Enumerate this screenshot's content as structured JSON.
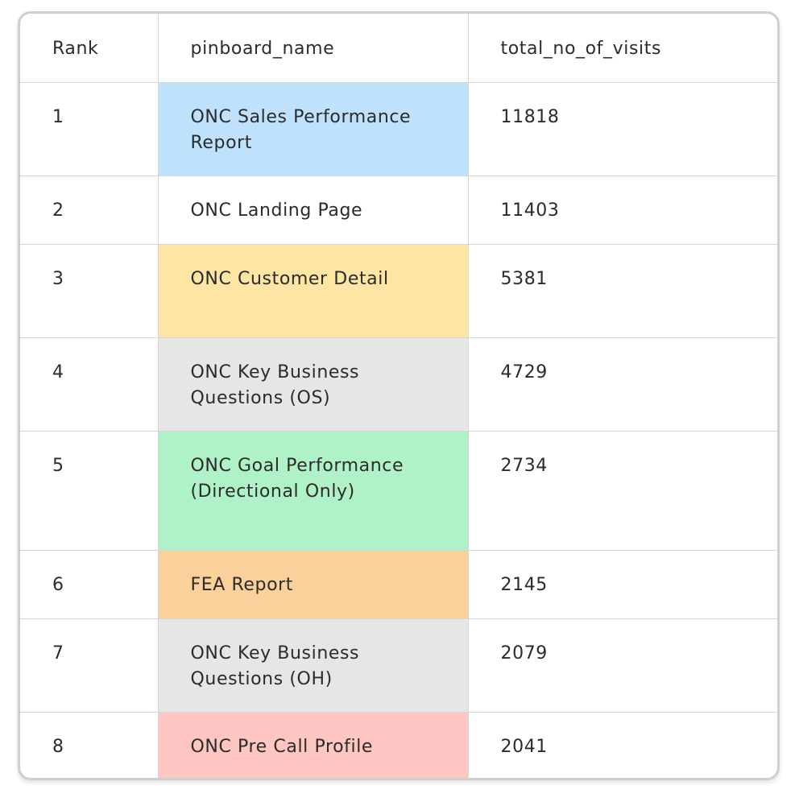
{
  "table": {
    "columns": [
      "Rank",
      "pinboard_name",
      "total_no_of_visits"
    ],
    "rows": [
      {
        "rank": "1",
        "name": "ONC Sales Performance Report",
        "visits": "11818",
        "color": "#bfe2fc"
      },
      {
        "rank": "2",
        "name": "ONC Landing Page",
        "visits": "11403",
        "color": "#ffffff"
      },
      {
        "rank": "3",
        "name": "ONC Customer Detail",
        "visits": "5381",
        "color": "#fde6a3"
      },
      {
        "rank": "4",
        "name": "ONC Key Business Questions (OS)",
        "visits": "4729",
        "color": "#e6e6e6"
      },
      {
        "rank": "5",
        "name": "ONC Goal Performance (Directional Only)",
        "visits": "2734",
        "color": "#b0f2c7"
      },
      {
        "rank": "6",
        "name": "FEA Report",
        "visits": "2145",
        "color": "#fbd19b"
      },
      {
        "rank": "7",
        "name": "ONC Key Business Questions (OH)",
        "visits": "2079",
        "color": "#e6e6e6"
      },
      {
        "rank": "8",
        "name": "ONC Pre Call Profile",
        "visits": "2041",
        "color": "#fdc6c2"
      }
    ]
  }
}
